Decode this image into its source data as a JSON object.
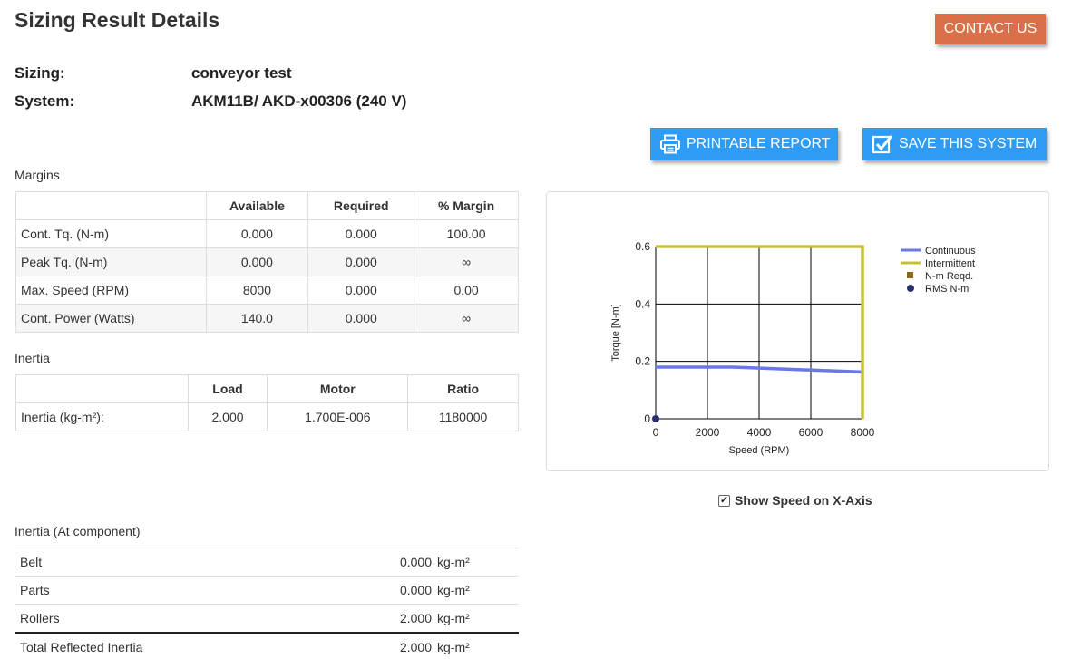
{
  "page": {
    "title": "Sizing Result Details"
  },
  "header": {
    "contact_label": "CONTACT US"
  },
  "summary": {
    "sizing_label": "Sizing:",
    "sizing_value": "conveyor test",
    "system_label": "System:",
    "system_value": "AKM11B/ AKD-x00306 (240 V)"
  },
  "actions": {
    "print_label": "PRINTABLE REPORT",
    "print_icon": "printer-icon",
    "save_label": "SAVE THIS SYSTEM",
    "save_icon": "checkbox-icon",
    "button_color": "#2e9bf5",
    "contact_color": "#d9704a"
  },
  "margins": {
    "label": "Margins",
    "headers": [
      "",
      "Available",
      "Required",
      "% Margin"
    ],
    "rows": [
      [
        "Cont. Tq. (N-m)",
        "0.000",
        "0.000",
        "100.00"
      ],
      [
        "Peak Tq. (N-m)",
        "0.000",
        "0.000",
        "∞"
      ],
      [
        "Max. Speed (RPM)",
        "8000",
        "0.000",
        "0.00"
      ],
      [
        "Cont. Power (Watts)",
        "140.0",
        "0.000",
        "∞"
      ]
    ]
  },
  "inertia": {
    "label": "Inertia",
    "headers": [
      "",
      "Load",
      "Motor",
      "Ratio"
    ],
    "rows": [
      [
        "Inertia (kg-m²):",
        "2.000",
        "1.700E-006",
        "1180000"
      ]
    ]
  },
  "inertia_component": {
    "label": "Inertia (At component)",
    "unit": "kg-m²",
    "rows": [
      {
        "name": "Belt",
        "value": "0.000"
      },
      {
        "name": "Parts",
        "value": "0.000"
      },
      {
        "name": "Rollers",
        "value": "2.000"
      }
    ],
    "total": {
      "name": "Total Reflected Inertia",
      "value": "2.000"
    }
  },
  "chart_data": {
    "type": "line",
    "title": "",
    "xlabel": "Speed (RPM)",
    "ylabel": "Torque [N-m]",
    "xlim": [
      0,
      8000
    ],
    "ylim": [
      0,
      0.6
    ],
    "x_ticks": [
      "0",
      "2000",
      "4000",
      "6000",
      "8000"
    ],
    "y_ticks": [
      "0",
      "0.2",
      "0.4",
      "0.6"
    ],
    "grid": true,
    "legend_position": "right",
    "series": [
      {
        "name": "Continuous",
        "color": "#6a78e8",
        "kind": "line",
        "x": [
          0,
          3000,
          8000
        ],
        "y": [
          0.18,
          0.18,
          0.163
        ]
      },
      {
        "name": "Intermittent",
        "color": "#c8c03c",
        "kind": "line",
        "x": [
          0,
          8000,
          8000
        ],
        "y": [
          0.6,
          0.6,
          0
        ]
      },
      {
        "name": "N-m Reqd.",
        "color": "#8a6a1a",
        "kind": "square-marker",
        "x": [],
        "y": []
      },
      {
        "name": "RMS N-m",
        "color": "#2a2f6a",
        "kind": "dot-marker",
        "x": [
          0
        ],
        "y": [
          0
        ]
      }
    ]
  },
  "options": {
    "show_speed_label": "Show Speed on X-Axis",
    "show_speed_checked": true,
    "check_mark": "✓"
  }
}
